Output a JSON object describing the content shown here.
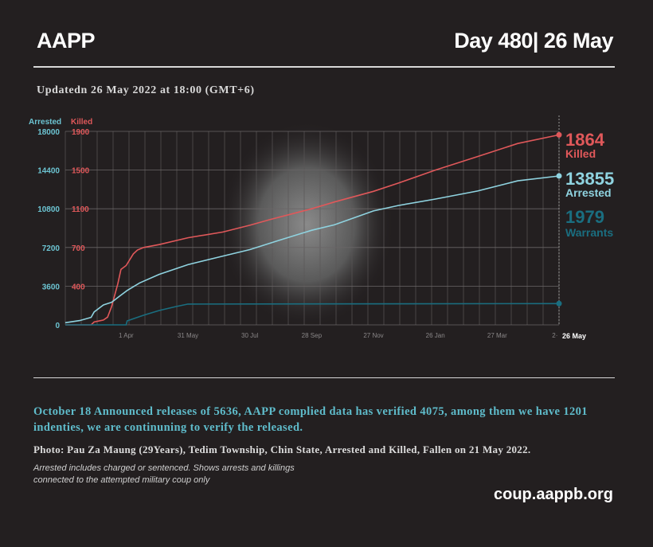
{
  "header": {
    "brand": "AAPP",
    "day": "Day 480| 26 May",
    "updated": "Updatedn 26 May 2022 at 18:00 (GMT+6)"
  },
  "chart_data": {
    "type": "line",
    "axis_left_label": "Arrested",
    "axis_left2_label": "Killed",
    "y_arrested_ticks": [
      "18000",
      "14400",
      "10800",
      "7200",
      "3600",
      "0"
    ],
    "y_killed_ticks": [
      "1900",
      "1500",
      "1100",
      "700",
      "400",
      ""
    ],
    "y_killed_tick_values": [
      1900,
      1500,
      1100,
      700,
      400,
      0
    ],
    "y_arrested_tick_values": [
      18000,
      14400,
      10800,
      7200,
      3600,
      0
    ],
    "ylim": [
      0,
      18000
    ],
    "xlim": [
      "2021-02-01",
      "2022-05-26"
    ],
    "x_ticks": [
      {
        "date": "2021-04-01",
        "label": "1 Apr"
      },
      {
        "date": "2021-05-31",
        "label": "31 May"
      },
      {
        "date": "2021-07-30",
        "label": "30 Jul"
      },
      {
        "date": "2021-09-28",
        "label": "28 Sep"
      },
      {
        "date": "2021-11-27",
        "label": "27 Nov"
      },
      {
        "date": "2022-01-26",
        "label": "26 Jan"
      },
      {
        "date": "2022-03-27",
        "label": "27 Mar"
      },
      {
        "date": "2022-05-22",
        "label": "2·"
      }
    ],
    "x_end_label": "26 May",
    "grid": true,
    "series": [
      {
        "name": "Killed",
        "color": "#e0585a",
        "axis": "killed",
        "final_value": "1864",
        "points": [
          [
            "2021-02-01",
            0
          ],
          [
            "2021-02-26",
            0
          ],
          [
            "2021-03-01",
            30
          ],
          [
            "2021-03-10",
            50
          ],
          [
            "2021-03-14",
            80
          ],
          [
            "2021-03-18",
            190
          ],
          [
            "2021-03-24",
            420
          ],
          [
            "2021-03-27",
            530
          ],
          [
            "2021-04-01",
            560
          ],
          [
            "2021-04-08",
            650
          ],
          [
            "2021-04-12",
            680
          ],
          [
            "2021-04-18",
            700
          ],
          [
            "2021-05-03",
            730
          ],
          [
            "2021-05-31",
            800
          ],
          [
            "2021-07-04",
            860
          ],
          [
            "2021-07-30",
            930
          ],
          [
            "2021-08-19",
            990
          ],
          [
            "2021-09-28",
            1100
          ],
          [
            "2021-10-20",
            1170
          ],
          [
            "2021-11-27",
            1280
          ],
          [
            "2021-12-21",
            1365
          ],
          [
            "2022-01-26",
            1500
          ],
          [
            "2022-03-08",
            1640
          ],
          [
            "2022-04-16",
            1775
          ],
          [
            "2022-05-26",
            1864
          ]
        ]
      },
      {
        "name": "Arrested",
        "color": "#8fd3e0",
        "axis": "arrested",
        "final_value": "13855",
        "points": [
          [
            "2021-02-01",
            200
          ],
          [
            "2021-02-15",
            400
          ],
          [
            "2021-02-26",
            700
          ],
          [
            "2021-03-01",
            1200
          ],
          [
            "2021-03-10",
            1850
          ],
          [
            "2021-03-18",
            2100
          ],
          [
            "2021-03-26",
            2700
          ],
          [
            "2021-04-02",
            3200
          ],
          [
            "2021-04-14",
            3900
          ],
          [
            "2021-05-03",
            4700
          ],
          [
            "2021-05-31",
            5600
          ],
          [
            "2021-07-04",
            6400
          ],
          [
            "2021-07-30",
            7000
          ],
          [
            "2021-08-27",
            7850
          ],
          [
            "2021-09-28",
            8800
          ],
          [
            "2021-10-20",
            9300
          ],
          [
            "2021-11-27",
            10600
          ],
          [
            "2021-12-21",
            11100
          ],
          [
            "2022-01-26",
            11700
          ],
          [
            "2022-03-08",
            12450
          ],
          [
            "2022-04-16",
            13400
          ],
          [
            "2022-05-26",
            13855
          ]
        ]
      },
      {
        "name": "Warrants",
        "color": "#1a6e80",
        "axis": "arrested",
        "final_value": "1979",
        "points": [
          [
            "2021-02-01",
            0
          ],
          [
            "2021-04-01",
            0
          ],
          [
            "2021-04-02",
            370
          ],
          [
            "2021-04-18",
            900
          ],
          [
            "2021-05-03",
            1330
          ],
          [
            "2021-05-19",
            1700
          ],
          [
            "2021-05-31",
            1930
          ],
          [
            "2022-05-26",
            1979
          ]
        ]
      }
    ]
  },
  "colors": {
    "background": "#231f20",
    "killed": "#e0585a",
    "arrested": "#8fd3e0",
    "warrants": "#1a6e80",
    "description": "#5fbccb"
  },
  "footer": {
    "description": "October 18 Announced releases of 5636, AAPP complied data has verified 4075, among them we have 1201 indenties, we are continuning to verify the released.",
    "photo_caption": "Photo: Pau Za Maung (29Years), Tedim Township, Chin State, Arrested and Killed, Fallen on  21 May 2022.",
    "note_line1": "Arrested includes charged or sentenced. Shows arrests and killings",
    "note_line2": "connected to the attempted military coup only",
    "site": "coup.aappb.org"
  }
}
